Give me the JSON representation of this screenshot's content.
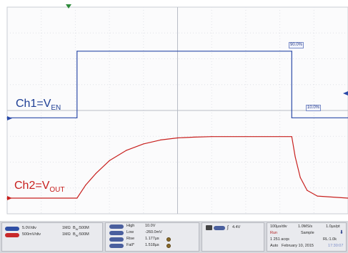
{
  "channels": {
    "ch1": {
      "label": "Ch1=V",
      "sub": "EN",
      "scale": "5.0V/div",
      "coupling": "1MΩ",
      "bw_prefix": "B",
      "bw_sub": "W",
      "bw": ":500M",
      "color": "#2b4aa8"
    },
    "ch2": {
      "label": "Ch2=V",
      "sub": "OUT",
      "scale": "500mV/div",
      "coupling": "1MΩ",
      "bw_prefix": "B",
      "bw_sub": "W",
      "bw": ":500M",
      "color": "#c8201e"
    }
  },
  "markers": {
    "high": "90.0%",
    "low": "10.0%"
  },
  "measurements": [
    {
      "name": "High",
      "value": "10.0V"
    },
    {
      "name": "Low",
      "value": "-260.0mV"
    },
    {
      "name": "Rise",
      "value": "1.177µs"
    },
    {
      "name": "Fall*",
      "value": "1.518µs"
    }
  ],
  "trigger": {
    "level": "4.4V",
    "icon": "trigger-rising-edge-icon"
  },
  "horizontal": {
    "timebase": "100µs/div",
    "samplerate": "1.0MS/s",
    "resolution": "1.0µs/pt",
    "run_state": "Run",
    "mode": "Sample",
    "acqs": "1 251 acqs",
    "record_length": "RL:1.0k",
    "trigger_mode": "Auto",
    "date": "February 10, 2015",
    "time": "17:30:07"
  },
  "chart_data": {
    "type": "line",
    "grid": true,
    "x_divisions": 10,
    "y_divisions": 8,
    "series": [
      {
        "name": "Ch1=VEN",
        "x_div": [
          0,
          2.05,
          2.05,
          8.35,
          8.35,
          10
        ],
        "y_div": [
          0.02,
          0.02,
          2.6,
          2.6,
          0.02,
          0.02
        ]
      },
      {
        "name": "Ch2=VOUT",
        "x_div": [
          0,
          2.05,
          2.3,
          2.6,
          3.0,
          3.5,
          4.0,
          4.5,
          5.0,
          5.5,
          6.0,
          8.35,
          8.45,
          8.6,
          8.8,
          9.1,
          10
        ],
        "y_div": [
          0.0,
          0.0,
          0.5,
          0.95,
          1.45,
          1.85,
          2.1,
          2.25,
          2.33,
          2.36,
          2.38,
          2.38,
          1.6,
          0.8,
          0.3,
          0.08,
          0.0
        ]
      }
    ]
  }
}
